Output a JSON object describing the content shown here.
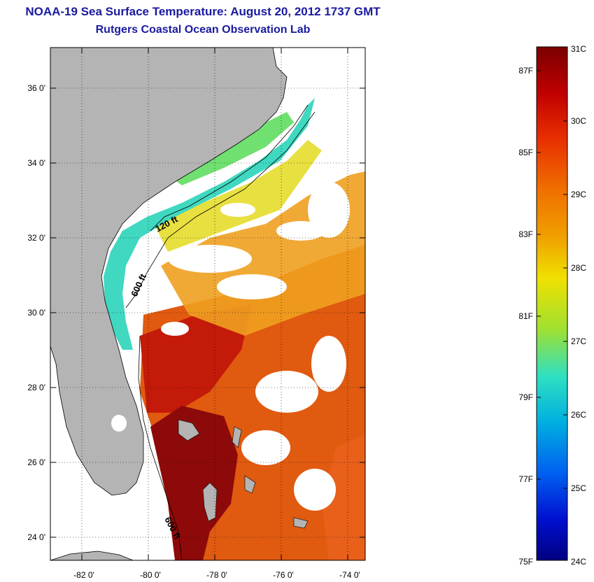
{
  "title": "NOAA-19 Sea Surface Temperature:  August 20, 2012 1737 GMT",
  "subtitle": "Rutgers Coastal Ocean Observation Lab",
  "map": {
    "lat_labels": [
      "36 0'",
      "34 0'",
      "32 0'",
      "30 0'",
      "28 0'",
      "26 0'",
      "24 0'"
    ],
    "lon_labels": [
      "-82 0'",
      "-80 0'",
      "-78 0'",
      "-76 0'",
      "-74 0'"
    ],
    "isobath_labels": [
      "120 ft",
      "600 ft",
      "600 ft"
    ],
    "land_color": "#b4b4b4",
    "cloud_color": "#ffffff"
  },
  "colorbar": {
    "celsius_labels": [
      "31C",
      "30C",
      "29C",
      "28C",
      "27C",
      "26C",
      "25C",
      "24C"
    ],
    "fahrenheit_labels": [
      "87F",
      "85F",
      "83F",
      "81F",
      "79F",
      "77F",
      "75F"
    ],
    "range_c": [
      24,
      31
    ],
    "colors_top_to_bottom": [
      "#7a0000",
      "#c00000",
      "#e83000",
      "#f07000",
      "#f0a000",
      "#f0e000",
      "#a0e030",
      "#30e0c0",
      "#00b0e0",
      "#0060f0",
      "#0010d0",
      "#000080"
    ]
  }
}
